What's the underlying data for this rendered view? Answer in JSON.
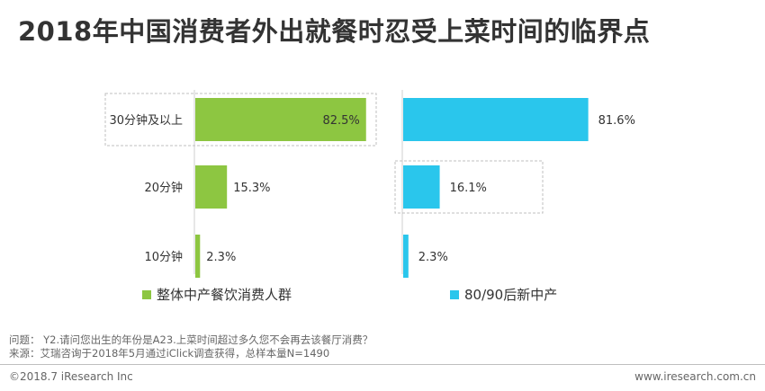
{
  "title": "2018年中国消费者外出就餐时忍受上菜时间的临界点",
  "chart_data": [
    {
      "type": "bar",
      "orientation": "horizontal",
      "categories": [
        "30分钟及以上",
        "20分钟",
        "10分钟"
      ],
      "series": [
        {
          "name": "整体中产餐饮消费人群",
          "values": [
            82.5,
            15.3,
            2.3
          ],
          "labels": [
            "82.5%",
            "15.3%",
            "2.3%"
          ]
        }
      ],
      "xlim": [
        0,
        100
      ],
      "highlight_category": "30分钟及以上",
      "grid": false
    },
    {
      "type": "bar",
      "orientation": "horizontal",
      "categories": [
        "30分钟及以上",
        "20分钟",
        "10分钟"
      ],
      "series": [
        {
          "name": "80/90后新中产",
          "values": [
            81.6,
            16.1,
            2.3
          ],
          "labels": [
            "81.6%",
            "16.1%",
            "2.3%"
          ]
        }
      ],
      "xlim": [
        0,
        100
      ],
      "highlight_category": "20分钟",
      "grid": false
    }
  ],
  "colors": {
    "series1": "#8dc641",
    "series2": "#2ac6ec",
    "highlight_box": "#bfbfbf",
    "axis": "#cfcfcf"
  },
  "legend": [
    {
      "label": "整体中产餐饮消费人群",
      "color": "#8dc641"
    },
    {
      "label": "80/90后新中产",
      "color": "#2ac6ec"
    }
  ],
  "footnote": {
    "question": "问题： Y2.请问您出生的年份是A23.上菜时间超过多久您不会再去该餐厅消费？",
    "source": "来源：艾瑞咨询于2018年5月通过iClick调查获得，总样本量N=1490"
  },
  "footer": {
    "copyright": "©2018.7 iResearch  Inc",
    "website": "www.iresearch.com.cn"
  }
}
